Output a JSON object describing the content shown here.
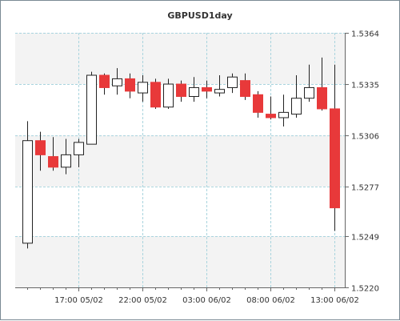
{
  "chart_data": {
    "type": "candlestick",
    "title": "GBPUSD1day",
    "y_ticks": [
      "1.5220",
      "1.5249",
      "1.5277",
      "1.5306",
      "1.5335",
      "1.5364"
    ],
    "ylim": [
      1.522,
      1.5364
    ],
    "x_ticks": [
      {
        "label": "17:00 05/02",
        "index": 4
      },
      {
        "label": "22:00 05/02",
        "index": 9
      },
      {
        "label": "03:00 06/02",
        "index": 14
      },
      {
        "label": "08:00 06/02",
        "index": 19
      },
      {
        "label": "13:00 06/02",
        "index": 24
      }
    ],
    "colors": {
      "up": "#ffffff",
      "down": "#e8393a",
      "grid": "#a9d4de",
      "axis": "#666666",
      "text": "#333333"
    },
    "candles": [
      {
        "o": 1.5245,
        "h": 1.5314,
        "l": 1.5242,
        "c": 1.5303
      },
      {
        "o": 1.5303,
        "h": 1.5308,
        "l": 1.5286,
        "c": 1.5295
      },
      {
        "o": 1.5294,
        "h": 1.5305,
        "l": 1.5286,
        "c": 1.5288
      },
      {
        "o": 1.5288,
        "h": 1.5304,
        "l": 1.5284,
        "c": 1.5295
      },
      {
        "o": 1.5295,
        "h": 1.5304,
        "l": 1.5288,
        "c": 1.5302
      },
      {
        "o": 1.5301,
        "h": 1.5342,
        "l": 1.5301,
        "c": 1.534
      },
      {
        "o": 1.534,
        "h": 1.5341,
        "l": 1.5329,
        "c": 1.5333
      },
      {
        "o": 1.5334,
        "h": 1.5344,
        "l": 1.5329,
        "c": 1.5338
      },
      {
        "o": 1.5338,
        "h": 1.5341,
        "l": 1.5327,
        "c": 1.5331
      },
      {
        "o": 1.533,
        "h": 1.534,
        "l": 1.5325,
        "c": 1.5336
      },
      {
        "o": 1.5336,
        "h": 1.5338,
        "l": 1.5321,
        "c": 1.5322
      },
      {
        "o": 1.5322,
        "h": 1.5338,
        "l": 1.5321,
        "c": 1.5335
      },
      {
        "o": 1.5335,
        "h": 1.5337,
        "l": 1.5325,
        "c": 1.5328
      },
      {
        "o": 1.5328,
        "h": 1.5339,
        "l": 1.5325,
        "c": 1.5333
      },
      {
        "o": 1.5333,
        "h": 1.5337,
        "l": 1.5327,
        "c": 1.5331
      },
      {
        "o": 1.533,
        "h": 1.534,
        "l": 1.5328,
        "c": 1.5332
      },
      {
        "o": 1.5333,
        "h": 1.5341,
        "l": 1.533,
        "c": 1.5339
      },
      {
        "o": 1.5337,
        "h": 1.5341,
        "l": 1.5326,
        "c": 1.5328
      },
      {
        "o": 1.5329,
        "h": 1.5331,
        "l": 1.5316,
        "c": 1.5319
      },
      {
        "o": 1.5318,
        "h": 1.5328,
        "l": 1.5315,
        "c": 1.5316
      },
      {
        "o": 1.5316,
        "h": 1.5329,
        "l": 1.5311,
        "c": 1.5319
      },
      {
        "o": 1.5318,
        "h": 1.534,
        "l": 1.5316,
        "c": 1.5327
      },
      {
        "o": 1.5327,
        "h": 1.5346,
        "l": 1.5325,
        "c": 1.5333
      },
      {
        "o": 1.5333,
        "h": 1.535,
        "l": 1.532,
        "c": 1.5321
      },
      {
        "o": 1.5321,
        "h": 1.5346,
        "l": 1.5252,
        "c": 1.5265
      }
    ]
  }
}
